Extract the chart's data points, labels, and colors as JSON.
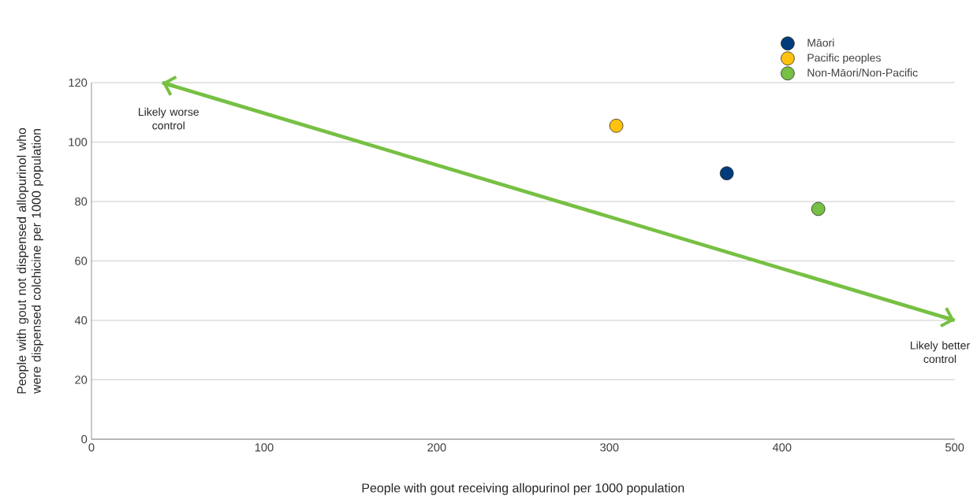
{
  "chart_data": {
    "type": "scatter",
    "xlabel": "People with gout receiving allopurinol per 1000 population",
    "ylabel": "People with gout not dispensed allopurinol who were dispensed colchicine per 1000 population",
    "xlim": [
      0,
      500
    ],
    "ylim": [
      0,
      120
    ],
    "xticks": [
      0,
      100,
      200,
      300,
      400,
      500
    ],
    "yticks": [
      0,
      20,
      40,
      60,
      80,
      100,
      120
    ],
    "grid": "y",
    "legend": "top right",
    "series": [
      {
        "name": "Māori",
        "marker": "circle",
        "color": "#003b7a",
        "x": [
          368
        ],
        "values": [
          89.5
        ]
      },
      {
        "name": "Pacific peoples",
        "marker": "circle",
        "color": "#ffc20e",
        "x": [
          304
        ],
        "values": [
          105.5
        ]
      },
      {
        "name": "Non-Māori/Non-Pacific",
        "marker": "circle",
        "color": "#76c043",
        "x": [
          421
        ],
        "values": [
          77.5
        ]
      },
      {
        "type": "line",
        "marker": "none",
        "color": "#76c043",
        "x": [
          41,
          500
        ],
        "values": [
          120,
          40
        ]
      }
    ],
    "annotations": [
      "Likely worse control",
      "Likely better control"
    ]
  }
}
